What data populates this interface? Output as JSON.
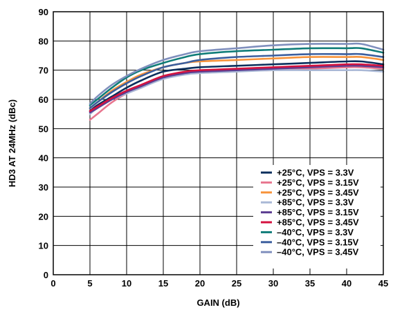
{
  "chart_data": {
    "type": "line",
    "title": "",
    "xlabel": "GAIN (dB)",
    "ylabel": "HD3 AT 24MHz (dBc)",
    "xlim": [
      0,
      45
    ],
    "ylim": [
      0,
      90
    ],
    "xticks": [
      0,
      5,
      10,
      15,
      20,
      25,
      30,
      35,
      40,
      45
    ],
    "yticks": [
      0,
      10,
      20,
      30,
      40,
      50,
      60,
      70,
      80,
      90
    ],
    "grid": true,
    "legend_position": "bottom-right",
    "x": [
      5,
      6,
      8,
      10,
      12,
      15,
      18,
      20,
      25,
      30,
      35,
      40,
      42,
      45
    ],
    "series": [
      {
        "name": "+25°C, VPS = 3.3V",
        "color": "#0a2e5c",
        "values": [
          56,
          58,
          61,
          64,
          66.5,
          69.5,
          70.5,
          71,
          71.5,
          72,
          72.5,
          73,
          73,
          72
        ]
      },
      {
        "name": "+25°C, VPS = 3.15V",
        "color": "#e8768f",
        "values": [
          53,
          55,
          59,
          62,
          64,
          67.5,
          69,
          69.5,
          70,
          70,
          70.5,
          71,
          71,
          70.5
        ]
      },
      {
        "name": "+25°C, VPS = 3.45V",
        "color": "#f7933a",
        "values": [
          57,
          59,
          63,
          66,
          68.5,
          71,
          72.5,
          73,
          73.5,
          74,
          74.5,
          74.5,
          74.5,
          73.5
        ]
      },
      {
        "name": "+85°C, VPS = 3.3V",
        "color": "#a9b8d6",
        "values": [
          55,
          57,
          60,
          62,
          64,
          67,
          68.5,
          69,
          69.5,
          70,
          70,
          70,
          70,
          69.5
        ]
      },
      {
        "name": "+85°C, VPS = 3.15V",
        "color": "#5c3d91",
        "values": [
          55.5,
          57,
          60,
          62.5,
          64.5,
          67.5,
          69,
          69.5,
          70,
          70.5,
          71,
          71.5,
          71.5,
          71
        ]
      },
      {
        "name": "+85°C, VPS = 3.45V",
        "color": "#d4123f",
        "values": [
          56,
          57.5,
          60.5,
          63,
          65,
          68,
          69.5,
          70,
          70.5,
          71,
          71.5,
          72,
          72,
          71.5
        ]
      },
      {
        "name": "–40°C, VPS = 3.3V",
        "color": "#0f7c78",
        "values": [
          58,
          60,
          64,
          67.5,
          70,
          72.5,
          74.5,
          75.5,
          76.5,
          77,
          77.5,
          77.5,
          77.5,
          76
        ]
      },
      {
        "name": "–40°C, VPS = 3.15V",
        "color": "#3b5e9e",
        "values": [
          57,
          59,
          62.5,
          65.5,
          68,
          71,
          72.5,
          73.5,
          74.5,
          75,
          75.5,
          75.5,
          75.5,
          74.5
        ]
      },
      {
        "name": "–40°C, VPS = 3.45V",
        "color": "#7f8fbd",
        "values": [
          58.5,
          61,
          65,
          68,
          70.5,
          73.5,
          75.5,
          76.5,
          77.5,
          78.5,
          79,
          79,
          79,
          77
        ]
      }
    ]
  }
}
